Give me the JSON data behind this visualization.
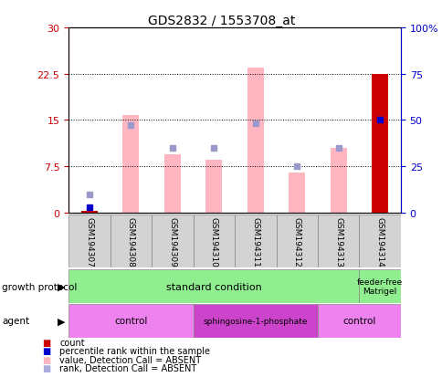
{
  "title": "GDS2832 / 1553708_at",
  "categories": [
    "GSM194307",
    "GSM194308",
    "GSM194309",
    "GSM194310",
    "GSM194311",
    "GSM194312",
    "GSM194313",
    "GSM194314"
  ],
  "left_ylim": [
    0,
    30
  ],
  "right_ylim": [
    0,
    100
  ],
  "left_yticks": [
    0,
    7.5,
    15,
    22.5,
    30
  ],
  "left_yticklabels": [
    "0",
    "7.5",
    "15",
    "22.5",
    "30"
  ],
  "right_yticks": [
    0,
    25,
    50,
    75,
    100
  ],
  "right_yticklabels": [
    "0",
    "25",
    "50",
    "75",
    "100%"
  ],
  "pink_values": [
    0.3,
    15.8,
    9.5,
    8.5,
    23.5,
    6.5,
    10.5,
    0
  ],
  "blue_rank_values": [
    3.0,
    14.2,
    10.5,
    10.5,
    14.5,
    7.5,
    10.5,
    0
  ],
  "count_bar_last": 22.5,
  "percentile_last": 50,
  "percentile_first": 3.0,
  "colors": {
    "pink_bar": "#FFB6C1",
    "blue_square": "#9999CC",
    "count_bar": "#CC0000",
    "percentile_dot": "#0000CC",
    "axis_left_color": "#CC0000",
    "axis_right_color": "#0000CC",
    "sample_box": "#D3D3D3",
    "gp_green": "#90EE90",
    "agent_light": "#EE82EE",
    "agent_dark": "#CC44CC"
  },
  "legend": [
    {
      "color": "#CC0000",
      "label": "count"
    },
    {
      "color": "#0000CC",
      "label": "percentile rank within the sample"
    },
    {
      "color": "#FFB6C1",
      "label": "value, Detection Call = ABSENT"
    },
    {
      "color": "#AAAADD",
      "label": "rank, Detection Call = ABSENT"
    }
  ],
  "agent_groups": [
    {
      "label": "control",
      "start": 0,
      "end": 3,
      "light": true
    },
    {
      "label": "sphingosine-1-phosphate",
      "start": 3,
      "end": 6,
      "light": false
    },
    {
      "label": "control",
      "start": 6,
      "end": 8,
      "light": true
    }
  ],
  "gp_groups": [
    {
      "label": "standard condition",
      "start": 0,
      "end": 7
    },
    {
      "label": "feeder-free\nMatrigel",
      "start": 7,
      "end": 8
    }
  ]
}
